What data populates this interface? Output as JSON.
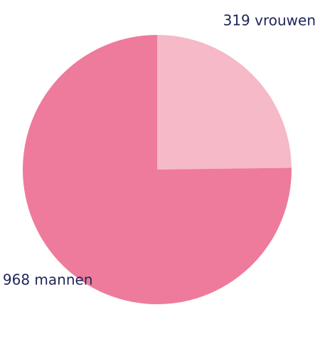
{
  "chart_data": {
    "type": "pie",
    "values": [
      319,
      968
    ],
    "value_labels": [
      "319 vrouwen",
      "968 mannen"
    ],
    "colors": [
      "#f5b9c7",
      "#ee7b9b"
    ]
  }
}
